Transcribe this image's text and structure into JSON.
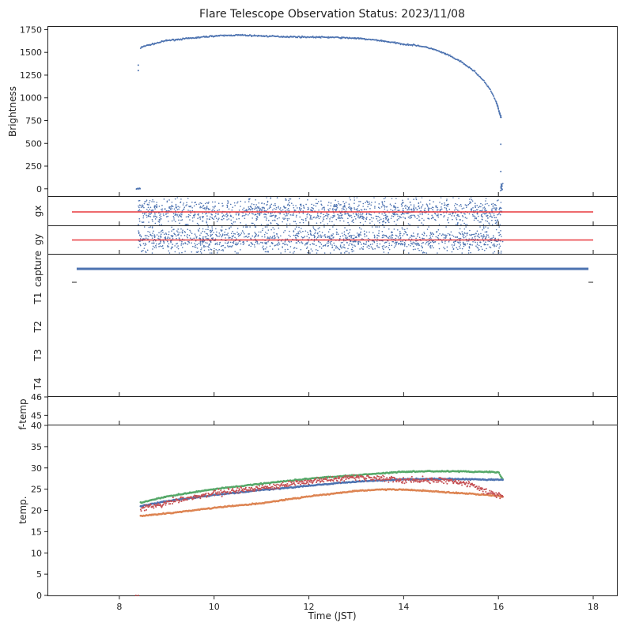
{
  "title": "Flare Telescope Observation Status: 2023/11/08",
  "colors": {
    "blue": "#4c72b0",
    "orange": "#dd8452",
    "green": "#55a868",
    "red": "#c44e52",
    "line_red": "#e8383d",
    "axis": "#222222"
  },
  "chart_data": [
    {
      "id": "brightness",
      "type": "scatter",
      "ylabel": "Brightness",
      "ylim": [
        -80,
        1780
      ],
      "yticks": [
        0,
        250,
        500,
        750,
        1000,
        1250,
        1500,
        1750
      ],
      "series": [
        {
          "name": "brightness",
          "color_key": "blue",
          "x": [
            8.38,
            8.4,
            8.42,
            8.45,
            8.5,
            8.7,
            9.0,
            9.5,
            10.0,
            10.5,
            11.0,
            11.5,
            12.0,
            12.5,
            13.0,
            13.5,
            14.0,
            14.3,
            14.6,
            14.9,
            15.2,
            15.5,
            15.7,
            15.85,
            15.95,
            16.0,
            16.05
          ],
          "y": [
            0,
            1300,
            1360,
            1550,
            1565,
            1590,
            1630,
            1655,
            1680,
            1690,
            1680,
            1672,
            1668,
            1665,
            1655,
            1630,
            1590,
            1575,
            1540,
            1480,
            1400,
            1290,
            1180,
            1070,
            960,
            880,
            790
          ]
        }
      ],
      "annotations": [
        {
          "x": 16.05,
          "y": 490
        },
        {
          "x": 16.05,
          "y": 190
        },
        {
          "x": 16.07,
          "y": 40
        }
      ]
    },
    {
      "id": "gx",
      "type": "scatter",
      "ylabel": "gx",
      "reference_line": {
        "y": 0,
        "x_range": [
          7.0,
          18.0
        ]
      },
      "scatter_range": {
        "x": [
          8.4,
          16.1
        ],
        "y_spread": 1.0
      }
    },
    {
      "id": "gy",
      "type": "scatter",
      "ylabel": "gy",
      "reference_line": {
        "y": 0,
        "x_range": [
          7.0,
          18.0
        ]
      },
      "scatter_range": {
        "x": [
          8.4,
          16.1
        ],
        "y_spread": 1.0
      }
    },
    {
      "id": "status",
      "type": "line",
      "ylabels": [
        "capture",
        "T1",
        "T2",
        "T3",
        "T4"
      ],
      "series": [
        {
          "name": "capture",
          "color_key": "blue",
          "x": [
            7.1,
            17.9
          ],
          "y": [
            0,
            0
          ]
        }
      ],
      "markers": [
        {
          "x": 7.05
        },
        {
          "x": 17.95
        }
      ]
    },
    {
      "id": "f-temp",
      "type": "line",
      "ylabel": "f-temp",
      "ylim": [
        44.5,
        46
      ],
      "yticks": [
        45,
        46
      ]
    },
    {
      "id": "temp",
      "type": "scatter",
      "ylabel": "temp.",
      "xlabel": "Time (JST)",
      "ylim": [
        0,
        40
      ],
      "yticks": [
        0,
        5,
        10,
        15,
        20,
        25,
        30,
        35,
        40
      ],
      "xlim": [
        6.5,
        18.5
      ],
      "xticks": [
        8,
        10,
        12,
        14,
        16,
        18
      ],
      "series": [
        {
          "name": "green",
          "color_key": "green",
          "x": [
            8.45,
            9.0,
            10.0,
            11.0,
            12.0,
            13.0,
            14.0,
            14.5,
            15.0,
            15.5,
            16.0,
            16.1
          ],
          "y": [
            21.8,
            23.3,
            25.0,
            26.3,
            27.5,
            28.3,
            29.1,
            29.2,
            29.2,
            29.1,
            29.0,
            27.2
          ]
        },
        {
          "name": "blue",
          "color_key": "blue",
          "x": [
            8.45,
            9.0,
            10.0,
            11.0,
            12.0,
            13.0,
            14.0,
            14.5,
            15.0,
            15.5,
            16.0,
            16.1
          ],
          "y": [
            21.0,
            22.2,
            23.6,
            24.8,
            25.8,
            26.8,
            27.3,
            27.4,
            27.4,
            27.3,
            27.2,
            27.2
          ]
        },
        {
          "name": "orange",
          "color_key": "orange",
          "x": [
            8.45,
            9.0,
            10.0,
            11.0,
            12.0,
            13.0,
            13.5,
            14.0,
            14.5,
            15.0,
            15.5,
            16.0,
            16.1
          ],
          "y": [
            18.7,
            19.3,
            20.6,
            21.7,
            23.3,
            24.6,
            24.9,
            24.9,
            24.6,
            24.2,
            23.9,
            23.4,
            23.2
          ]
        },
        {
          "name": "red",
          "color_key": "red",
          "x": [
            8.45,
            9.0,
            10.0,
            11.0,
            12.0,
            13.0,
            13.5,
            14.0,
            14.5,
            15.0,
            15.5,
            15.8,
            16.1
          ],
          "y": [
            20.5,
            21.8,
            24.0,
            25.3,
            26.9,
            27.8,
            27.6,
            27.0,
            27.2,
            26.9,
            25.8,
            24.2,
            23.2
          ]
        }
      ],
      "stray_points": [
        {
          "x": 8.35,
          "y": 0
        },
        {
          "x": 8.4,
          "y": 0
        }
      ]
    }
  ]
}
